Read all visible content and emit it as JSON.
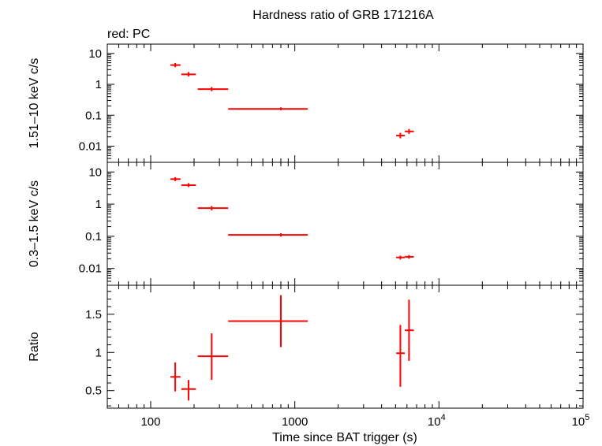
{
  "chart_data": {
    "type": "scatter",
    "title": "Hardness ratio of GRB 171216A",
    "subtitle": "red: PC",
    "xlabel": "Time since BAT trigger (s)",
    "xscale": "log",
    "xlim": [
      50,
      100000
    ],
    "x_tick_labels": [
      {
        "value": 100,
        "label": "100"
      },
      {
        "value": 1000,
        "label": "1000"
      },
      {
        "value": 10000,
        "label": "10",
        "exponent": "4"
      },
      {
        "value": 100000,
        "label": "10",
        "exponent": "5"
      }
    ],
    "series_color": "#ff0000",
    "panels": [
      {
        "ylabel": "1.51–10 keV c/s",
        "yscale": "log",
        "ylim": [
          0.003,
          20
        ],
        "y_tick_labels": [
          {
            "value": 10,
            "label": "10"
          },
          {
            "value": 1,
            "label": "1"
          },
          {
            "value": 0.1,
            "label": "0.1"
          },
          {
            "value": 0.01,
            "label": "0.01"
          }
        ],
        "points": [
          {
            "x": 148,
            "xlo": 137,
            "xhi": 161,
            "y": 4.2,
            "ylo": 3.6,
            "yhi": 4.9
          },
          {
            "x": 183,
            "xlo": 163,
            "xhi": 206,
            "y": 2.1,
            "ylo": 1.8,
            "yhi": 2.5
          },
          {
            "x": 265,
            "xlo": 212,
            "xhi": 345,
            "y": 0.7,
            "ylo": 0.6,
            "yhi": 0.82
          },
          {
            "x": 800,
            "xlo": 345,
            "xhi": 1230,
            "y": 0.16,
            "ylo": 0.145,
            "yhi": 0.18
          },
          {
            "x": 5400,
            "xlo": 5050,
            "xhi": 5800,
            "y": 0.022,
            "ylo": 0.018,
            "yhi": 0.027
          },
          {
            "x": 6200,
            "xlo": 5800,
            "xhi": 6700,
            "y": 0.03,
            "ylo": 0.025,
            "yhi": 0.036
          }
        ]
      },
      {
        "ylabel": "0.3–1.5 keV c/s",
        "yscale": "log",
        "ylim": [
          0.003,
          20
        ],
        "y_tick_labels": [
          {
            "value": 10,
            "label": "10"
          },
          {
            "value": 1,
            "label": "1"
          },
          {
            "value": 0.1,
            "label": "0.1"
          },
          {
            "value": 0.01,
            "label": "0.01"
          }
        ],
        "points": [
          {
            "x": 148,
            "xlo": 137,
            "xhi": 161,
            "y": 6.0,
            "ylo": 5.2,
            "yhi": 6.9
          },
          {
            "x": 183,
            "xlo": 163,
            "xhi": 206,
            "y": 3.9,
            "ylo": 3.4,
            "yhi": 4.5
          },
          {
            "x": 265,
            "xlo": 212,
            "xhi": 345,
            "y": 0.75,
            "ylo": 0.64,
            "yhi": 0.87
          },
          {
            "x": 800,
            "xlo": 345,
            "xhi": 1230,
            "y": 0.11,
            "ylo": 0.098,
            "yhi": 0.124
          },
          {
            "x": 5400,
            "xlo": 5050,
            "xhi": 5800,
            "y": 0.022,
            "ylo": 0.019,
            "yhi": 0.025
          },
          {
            "x": 6200,
            "xlo": 5800,
            "xhi": 6700,
            "y": 0.023,
            "ylo": 0.02,
            "yhi": 0.026
          }
        ]
      },
      {
        "ylabel": "Ratio",
        "yscale": "linear",
        "ylim": [
          0.27,
          1.88
        ],
        "y_tick_labels": [
          {
            "value": 1.5,
            "label": "1.5"
          },
          {
            "value": 1,
            "label": "1"
          },
          {
            "value": 0.5,
            "label": "0.5"
          }
        ],
        "points": [
          {
            "x": 148,
            "xlo": 137,
            "xhi": 161,
            "y": 0.68,
            "ylo": 0.49,
            "yhi": 0.87
          },
          {
            "x": 183,
            "xlo": 163,
            "xhi": 206,
            "y": 0.52,
            "ylo": 0.37,
            "yhi": 0.64
          },
          {
            "x": 265,
            "xlo": 212,
            "xhi": 345,
            "y": 0.95,
            "ylo": 0.64,
            "yhi": 1.25
          },
          {
            "x": 800,
            "xlo": 345,
            "xhi": 1230,
            "y": 1.41,
            "ylo": 1.07,
            "yhi": 1.75
          },
          {
            "x": 5400,
            "xlo": 5050,
            "xhi": 5800,
            "y": 0.99,
            "ylo": 0.55,
            "yhi": 1.36
          },
          {
            "x": 6200,
            "xlo": 5800,
            "xhi": 6700,
            "y": 1.29,
            "ylo": 0.89,
            "yhi": 1.69
          }
        ]
      }
    ]
  }
}
